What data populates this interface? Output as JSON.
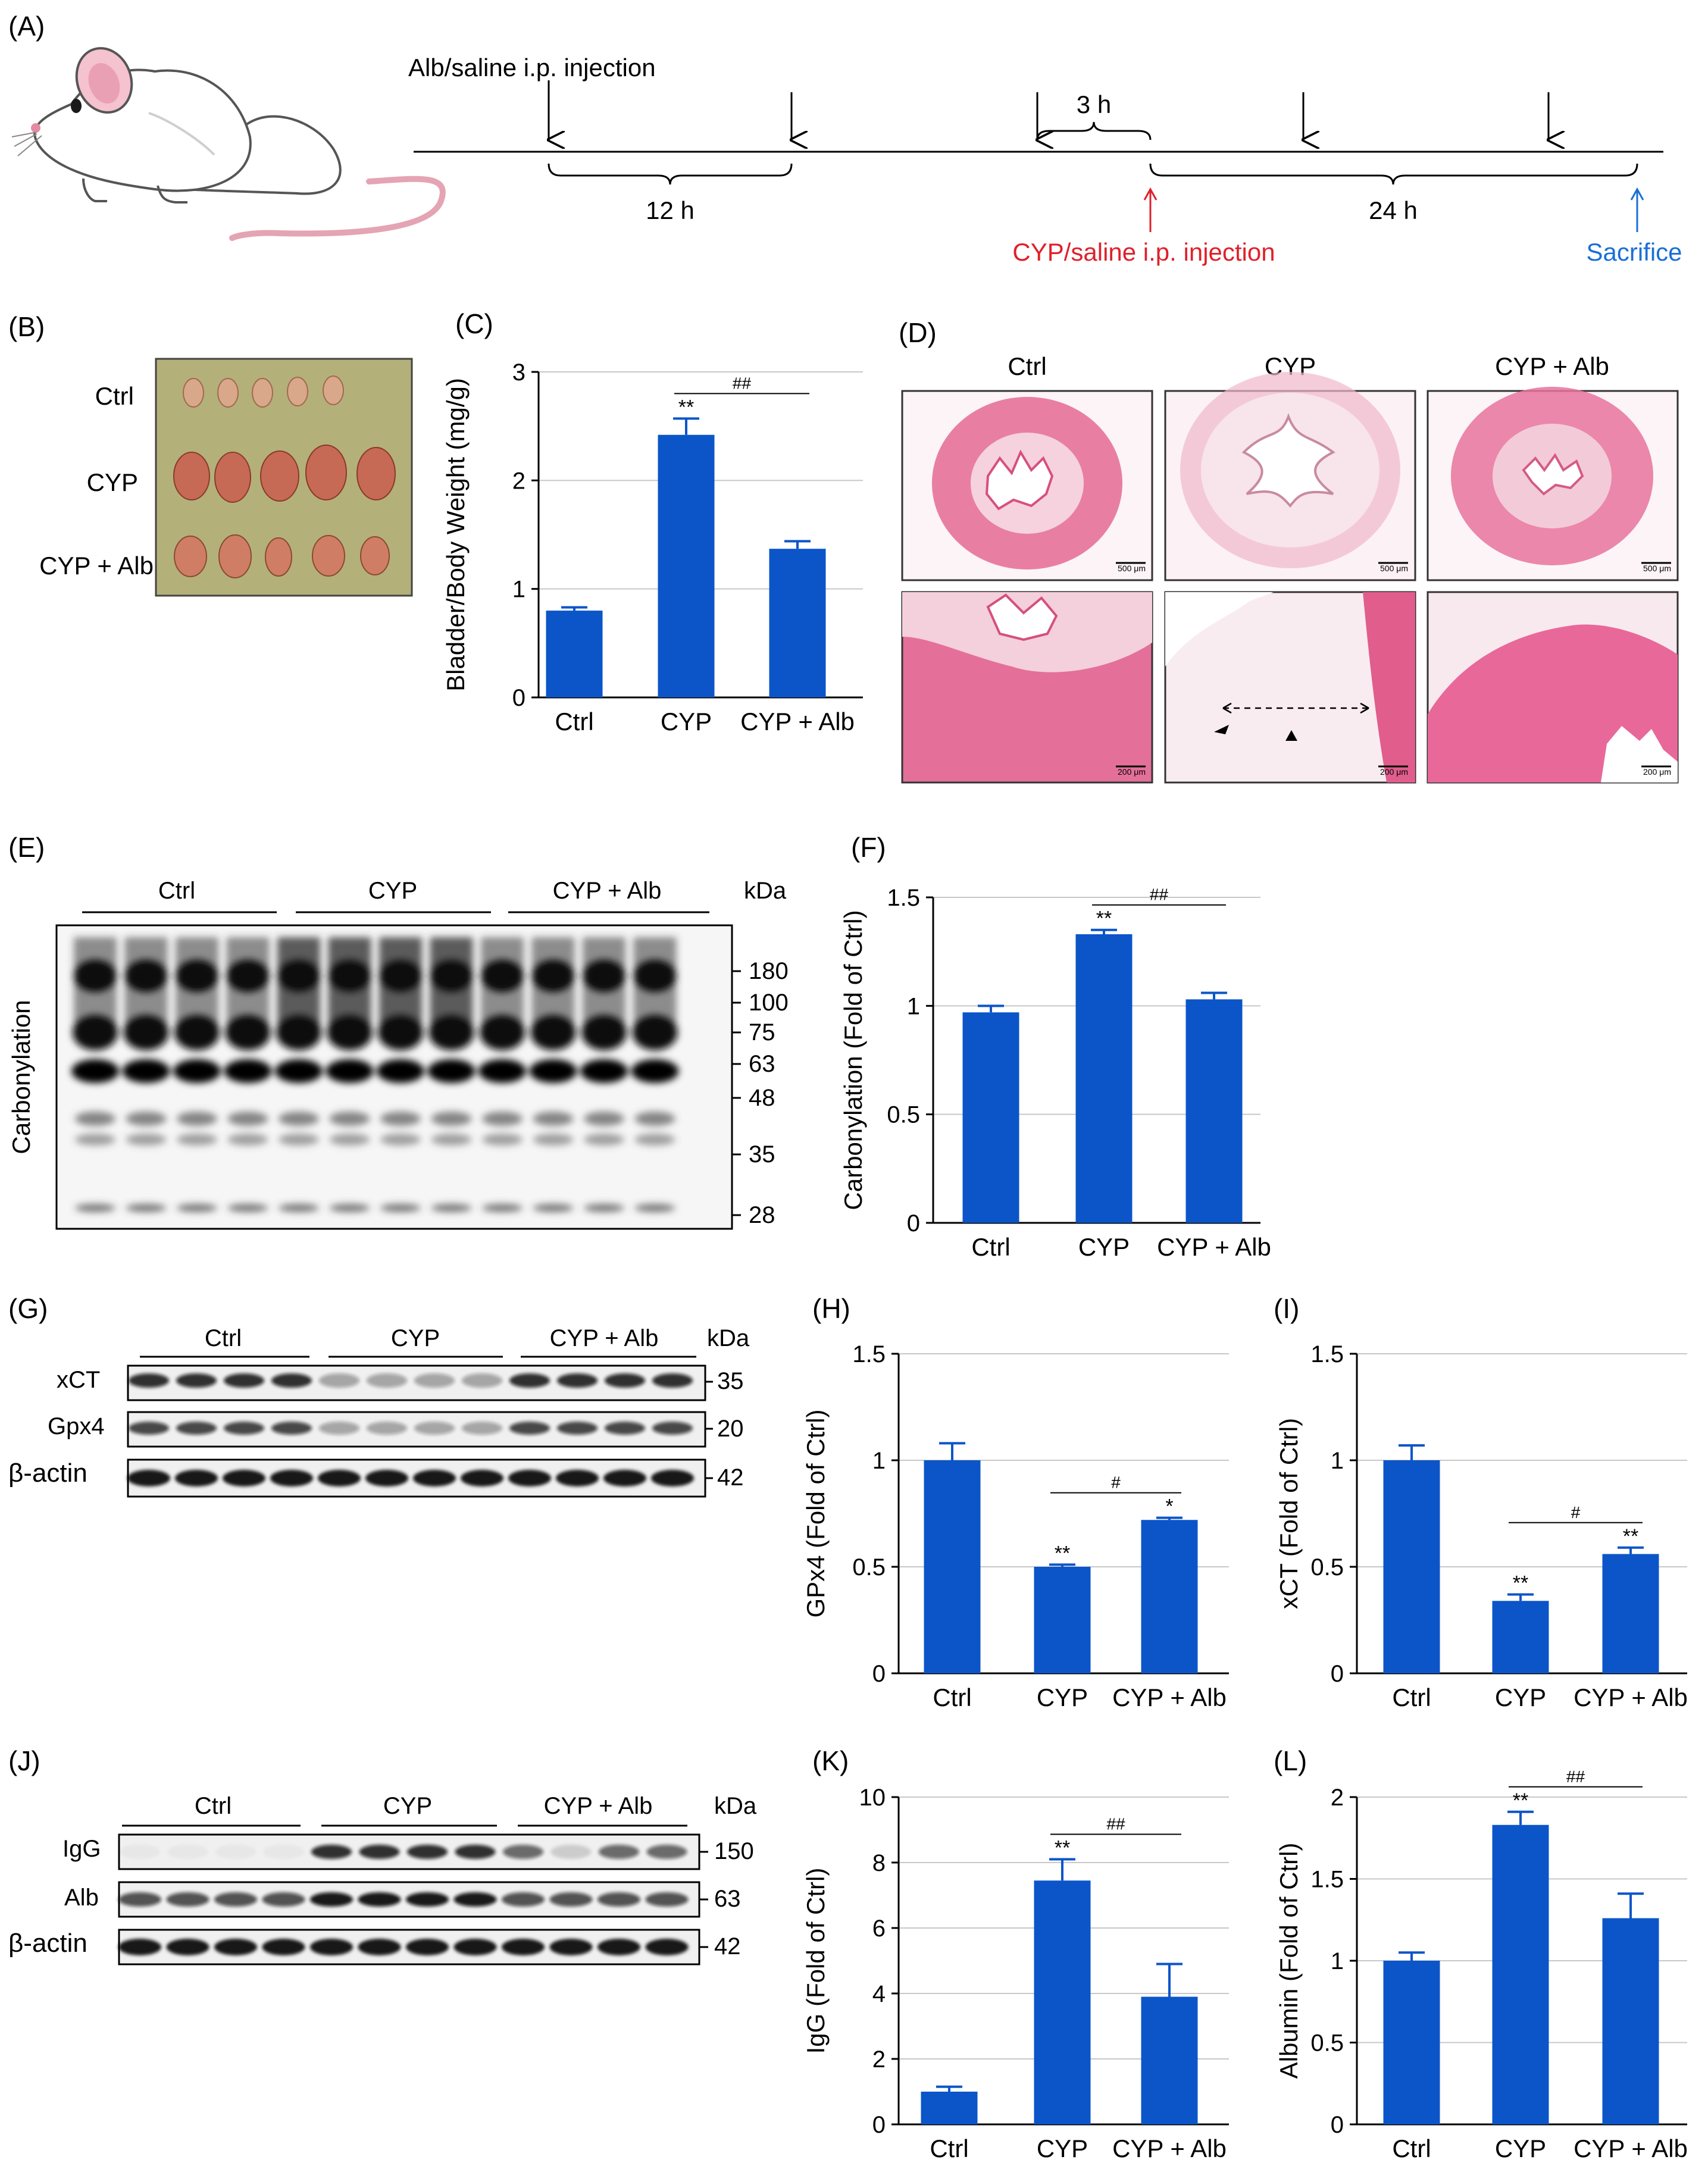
{
  "colors": {
    "bar": "#0b55c9",
    "red": "#e0202a",
    "blue": "#1a6fd6",
    "axis": "#000000",
    "grid": "#c8c8c8"
  },
  "panelA": {
    "label": "(A)",
    "alb_injection": "Alb/saline i.p. injection",
    "interval_12h": "12 h",
    "interval_3h": "3 h",
    "interval_24h": "24 h",
    "cyp_injection": "CYP/saline i.p. injection",
    "sacrifice": "Sacrifice"
  },
  "panelB": {
    "label": "(B)",
    "groups": [
      "Ctrl",
      "CYP",
      "CYP + Alb"
    ]
  },
  "panelD": {
    "label": "(D)",
    "columns": [
      "Ctrl",
      "CYP",
      "CYP + Alb"
    ],
    "scale_top": "500 μm",
    "scale_bottom": "200 μm"
  },
  "panelE": {
    "label": "(E)",
    "groups": [
      "Ctrl",
      "CYP",
      "CYP + Alb"
    ],
    "kda_header": "kDa",
    "ylabel": "Carbonylation",
    "markers": [
      "180",
      "100",
      "75",
      "63",
      "48",
      "35",
      "28"
    ]
  },
  "panelG": {
    "label": "(G)",
    "groups": [
      "Ctrl",
      "CYP",
      "CYP + Alb"
    ],
    "kda_header": "kDa",
    "rows": [
      {
        "name": "xCT",
        "kda": "35"
      },
      {
        "name": "Gpx4",
        "kda": "20"
      },
      {
        "name": "β-actin",
        "kda": "42"
      }
    ]
  },
  "panelJ": {
    "label": "(J)",
    "groups": [
      "Ctrl",
      "CYP",
      "CYP + Alb"
    ],
    "kda_header": "kDa",
    "rows": [
      {
        "name": "IgG",
        "kda": "150"
      },
      {
        "name": "Alb",
        "kda": "63"
      },
      {
        "name": "β-actin",
        "kda": "42"
      }
    ]
  },
  "chart_data": [
    {
      "id": "C",
      "label": "(C)",
      "type": "bar",
      "categories": [
        "Ctrl",
        "CYP",
        "CYP + Alb"
      ],
      "values": [
        0.8,
        2.42,
        1.37
      ],
      "errors": [
        0.03,
        0.15,
        0.07
      ],
      "ylabel": "Bladder/Body Weight (mg/g)",
      "ylim": [
        0,
        3
      ],
      "yticks": [
        "0",
        "1",
        "2",
        "3"
      ],
      "grid": true,
      "stars": [
        "",
        "**",
        ""
      ],
      "bracket": {
        "from": 1,
        "to": 2,
        "text": "##"
      }
    },
    {
      "id": "F",
      "label": "(F)",
      "type": "bar",
      "categories": [
        "Ctrl",
        "CYP",
        "CYP + Alb"
      ],
      "values": [
        0.97,
        1.33,
        1.03
      ],
      "errors": [
        0.03,
        0.02,
        0.03
      ],
      "ylabel": "Carbonylation (Fold of Ctrl)",
      "ylim": [
        0,
        1.5
      ],
      "yticks": [
        "0",
        "0.5",
        "1",
        "1.5"
      ],
      "grid": true,
      "stars": [
        "",
        "**",
        ""
      ],
      "bracket": {
        "from": 1,
        "to": 2,
        "text": "##"
      }
    },
    {
      "id": "H",
      "label": "(H)",
      "type": "bar",
      "categories": [
        "Ctrl",
        "CYP",
        "CYP + Alb"
      ],
      "values": [
        1.0,
        0.5,
        0.72
      ],
      "errors": [
        0.08,
        0.01,
        0.01
      ],
      "ylabel": "GPx4 (Fold of Ctrl)",
      "ylim": [
        0,
        1.5
      ],
      "yticks": [
        "0",
        "0.5",
        "1",
        "1.5"
      ],
      "grid": true,
      "stars": [
        "",
        "**",
        "*"
      ],
      "bracket": {
        "from": 1,
        "to": 2,
        "text": "#"
      }
    },
    {
      "id": "I",
      "label": "(I)",
      "type": "bar",
      "categories": [
        "Ctrl",
        "CYP",
        "CYP + Alb"
      ],
      "values": [
        1.0,
        0.34,
        0.56
      ],
      "errors": [
        0.07,
        0.03,
        0.03
      ],
      "ylabel": "xCT (Fold of Ctrl)",
      "ylim": [
        0,
        1.5
      ],
      "yticks": [
        "0",
        "0.5",
        "1",
        "1.5"
      ],
      "grid": true,
      "stars": [
        "",
        "**",
        "**"
      ],
      "bracket": {
        "from": 1,
        "to": 2,
        "text": "#"
      }
    },
    {
      "id": "K",
      "label": "(K)",
      "type": "bar",
      "categories": [
        "Ctrl",
        "CYP",
        "CYP + Alb"
      ],
      "values": [
        1.0,
        7.45,
        3.9
      ],
      "errors": [
        0.15,
        0.65,
        1.0
      ],
      "ylabel": "IgG (Fold of Ctrl)",
      "ylim": [
        0,
        10
      ],
      "yticks": [
        "0",
        "2",
        "4",
        "6",
        "8",
        "10"
      ],
      "grid": true,
      "stars": [
        "",
        "**",
        ""
      ],
      "bracket": {
        "from": 1,
        "to": 2,
        "text": "##"
      }
    },
    {
      "id": "L",
      "label": "(L)",
      "type": "bar",
      "categories": [
        "Ctrl",
        "CYP",
        "CYP + Alb"
      ],
      "values": [
        1.0,
        1.83,
        1.26
      ],
      "errors": [
        0.05,
        0.08,
        0.15
      ],
      "ylabel": "Albumin (Fold of Ctrl)",
      "ylim": [
        0,
        2
      ],
      "yticks": [
        "0",
        "0.5",
        "1",
        "1.5",
        "2"
      ],
      "grid": true,
      "stars": [
        "",
        "**",
        ""
      ],
      "bracket": {
        "from": 1,
        "to": 2,
        "text": "##"
      }
    }
  ]
}
